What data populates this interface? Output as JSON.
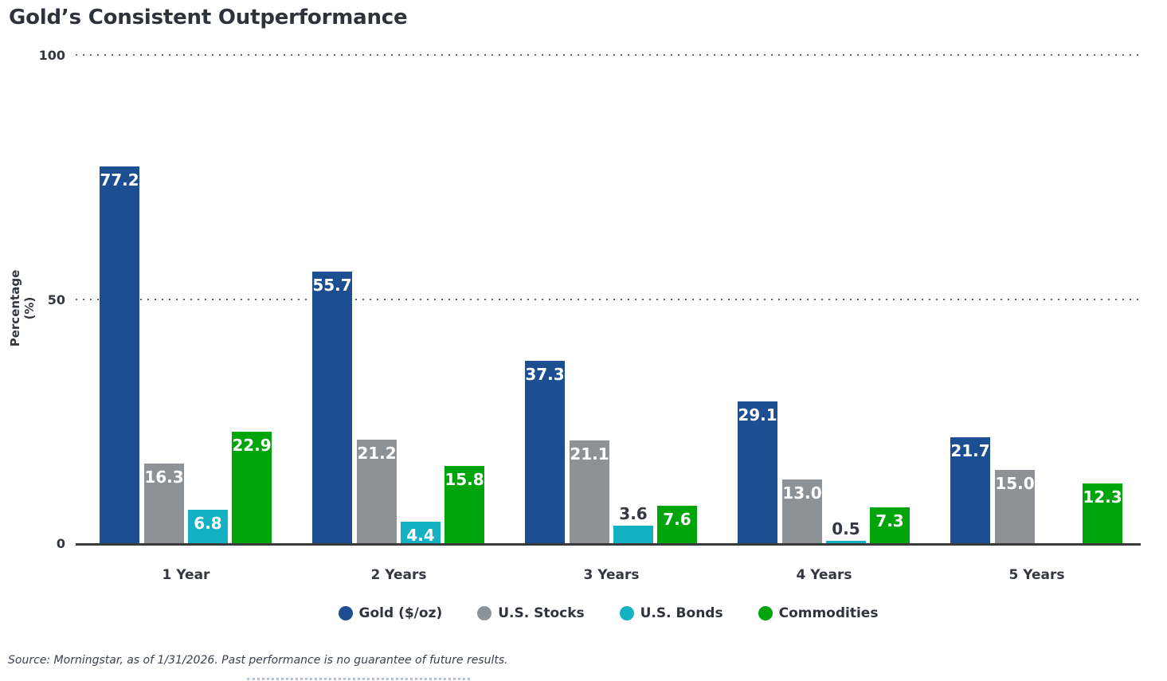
{
  "title": "Gold’s Consistent Outperformance",
  "source_note": "Source: Morningstar, as of 1/31/2026. Past performance is no guarantee of future results.",
  "colors": {
    "gold": "#1C4E92",
    "us_stocks": "#8D9297",
    "us_bonds": "#14B1C4",
    "commodities": "#00A40B",
    "axis_text": "#33373E",
    "baseline": "#3A3A3A"
  },
  "chart_data": {
    "type": "bar",
    "title": "Gold’s Consistent Outperformance",
    "categories": [
      "1 Year",
      "2 Years",
      "3 Years",
      "4 Years",
      "5 Years"
    ],
    "series": [
      {
        "name": "Gold ($/oz)",
        "color": "#1C4E92",
        "values": [
          77.2,
          55.7,
          37.3,
          29.1,
          21.7
        ],
        "value_labels": [
          "77.2",
          "55.7",
          "37.3",
          "29.1",
          "21.7"
        ]
      },
      {
        "name": "U.S. Stocks",
        "color": "#8D9297",
        "values": [
          16.3,
          21.2,
          21.1,
          13.0,
          15.0
        ],
        "value_labels": [
          "16.3",
          "21.2",
          "21.1",
          "13.0",
          "15.0"
        ]
      },
      {
        "name": "U.S. Bonds",
        "color": "#14B1C4",
        "values": [
          6.8,
          4.4,
          3.6,
          0.5,
          null
        ],
        "value_labels": [
          "6.8",
          "4.4",
          "3.6",
          "0.5",
          ""
        ]
      },
      {
        "name": "Commodities",
        "color": "#00A40B",
        "values": [
          22.9,
          15.8,
          7.6,
          7.3,
          12.3
        ],
        "value_labels": [
          "22.9",
          "15.8",
          "7.6",
          "7.3",
          "12.3"
        ]
      }
    ],
    "xlabel": "",
    "ylabel": "Percentage (%)",
    "yticks": [
      0,
      50,
      100
    ],
    "ylim": [
      0,
      100
    ],
    "grid": "dotted horizontal gridlines at 50 and 100, solid axis line at 0",
    "legend_position": "bottom"
  }
}
